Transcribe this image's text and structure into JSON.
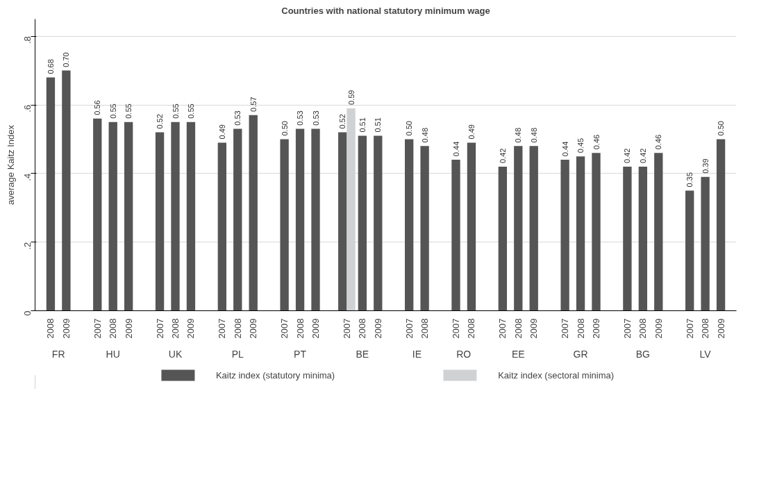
{
  "chart_data": {
    "type": "bar",
    "title": "Countries with national statutory minimum wage",
    "ylabel": "average Kaitz Index",
    "categories": [
      "2008",
      "2009",
      "2007",
      "2008",
      "2009",
      "2007",
      "2008",
      "2009",
      "2007",
      "2008",
      "2009",
      "2007",
      "2008",
      "2009",
      "2007",
      "2008",
      "2009",
      "2007",
      "2008",
      "2007",
      "2008",
      "2007",
      "2008",
      "2009",
      "2007",
      "2008",
      "2009",
      "2007",
      "2008",
      "2009",
      "2007",
      "2008",
      "2009"
    ],
    "annotations": [
      "FR",
      "HU",
      "UK",
      "PL",
      "PT",
      "BE",
      "IE",
      "RO",
      "EE",
      "GR",
      "BG",
      "LV"
    ],
    "series": [
      {
        "name": "Kaitz index (statutory minima)",
        "color": "#555555",
        "values": [
          0.68,
          0.7,
          0.56,
          0.55,
          0.55,
          0.52,
          0.55,
          0.55,
          0.49,
          0.53,
          0.57,
          0.5,
          0.53,
          0.53,
          0.52,
          0.51,
          0.51,
          0.5,
          0.48,
          0.44,
          0.49,
          0.42,
          0.48,
          0.48,
          0.44,
          0.45,
          0.46,
          0.42,
          0.42,
          0.46,
          0.35,
          0.39,
          0.5
        ],
        "value_labels": [
          "0.68",
          "0.70",
          "0.56",
          "0.55",
          "0.55",
          "0.52",
          "0.55",
          "0.55",
          "0.49",
          "0.53",
          "0.57",
          "0.50",
          "0.53",
          "0.53",
          "0.52",
          "0.51",
          "0.51",
          "0.50",
          "0.48",
          "0.44",
          "0.49",
          "0.42",
          "0.48",
          "0.48",
          "0.44",
          "0.45",
          "0.46",
          "0.42",
          "0.42",
          "0.46",
          "0.35",
          "0.39",
          "0.50"
        ]
      },
      {
        "name": "Kaitz index (sectoral minima)",
        "color": "#d0d1d3",
        "values": [
          null,
          null,
          null,
          null,
          null,
          null,
          null,
          null,
          null,
          null,
          null,
          null,
          null,
          null,
          0.59,
          null,
          null,
          null,
          null,
          null,
          null,
          null,
          null,
          null,
          null,
          null,
          null,
          null,
          null,
          null,
          null,
          null,
          null
        ],
        "value_labels": [
          null,
          null,
          null,
          null,
          null,
          null,
          null,
          null,
          null,
          null,
          null,
          null,
          null,
          null,
          "0.59",
          null,
          null,
          null,
          null,
          null,
          null,
          null,
          null,
          null,
          null,
          null,
          null,
          null,
          null,
          null,
          null,
          null,
          null
        ]
      }
    ],
    "ylim": [
      0,
      0.85
    ],
    "yticks": [
      {
        "value": 0,
        "label": "0"
      },
      {
        "value": 0.2,
        "label": ".2"
      },
      {
        "value": 0.4,
        "label": ".4"
      },
      {
        "value": 0.6,
        "label": ".6"
      },
      {
        "value": 0.8,
        "label": ".8"
      }
    ],
    "grid": "y",
    "legend": "bottom"
  }
}
